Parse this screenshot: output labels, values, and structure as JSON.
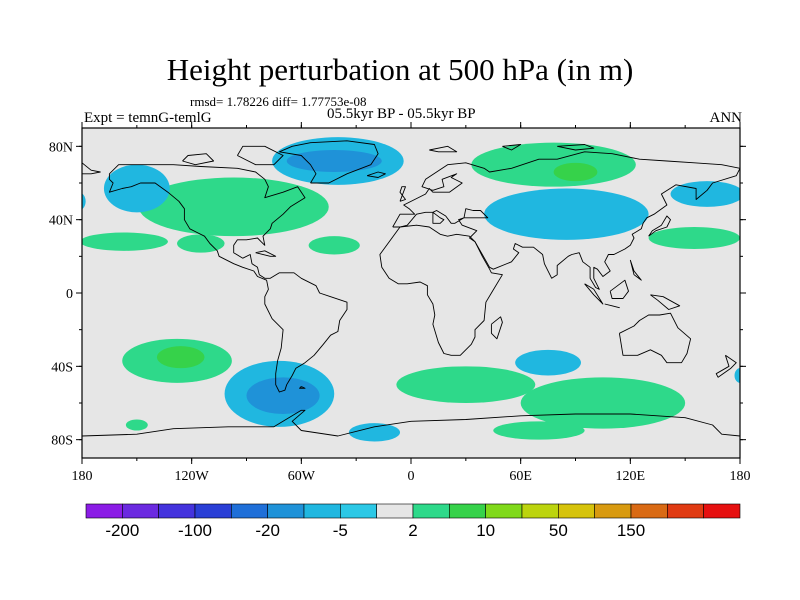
{
  "title": "Height perturbation at 500 hPa (in m)",
  "stats": "rmsd= 1.78226 diff= 1.77753e-08",
  "experiment": "Expt = temnG-temlG",
  "period": "05.5kyr BP - 05.5kyr BP",
  "season": "ANN",
  "lat_ticks": [
    {
      "label": "80N",
      "lat": 80
    },
    {
      "label": "40N",
      "lat": 40
    },
    {
      "label": "0",
      "lat": 0
    },
    {
      "label": "40S",
      "lat": -40
    },
    {
      "label": "80S",
      "lat": -80
    }
  ],
  "lon_ticks": [
    {
      "label": "180",
      "lon": -180
    },
    {
      "label": "120W",
      "lon": -120
    },
    {
      "label": "60W",
      "lon": -60
    },
    {
      "label": "0",
      "lon": 0
    },
    {
      "label": "60E",
      "lon": 60
    },
    {
      "label": "120E",
      "lon": 120
    },
    {
      "label": "180",
      "lon": 180
    }
  ],
  "colorbar": {
    "colors": [
      "#8b1ce6",
      "#6b2ae0",
      "#4433dd",
      "#2a3fd6",
      "#1f6fd8",
      "#1f92d8",
      "#20b7e0",
      "#2cc8e6",
      "#e6e6e6",
      "#2ed98a",
      "#36d24a",
      "#80d91a",
      "#bcd40e",
      "#d6c30c",
      "#d89a10",
      "#d96a14",
      "#e03a12",
      "#e61010"
    ],
    "labels": [
      "-200",
      "-100",
      "-20",
      "-5",
      "2",
      "10",
      "50",
      "150"
    ]
  },
  "anomaly_regions": [
    {
      "kind": "pos",
      "level": 1,
      "lon": -97,
      "lat": 47,
      "rlon": 52,
      "rlat": 16
    },
    {
      "kind": "pos",
      "level": 1,
      "lon": -157,
      "lat": 28,
      "rlon": 24,
      "rlat": 5
    },
    {
      "kind": "pos",
      "level": 1,
      "lon": -115,
      "lat": 27,
      "rlon": 13,
      "rlat": 5
    },
    {
      "kind": "pos",
      "level": 1,
      "lon": -42,
      "lat": 26,
      "rlon": 14,
      "rlat": 5
    },
    {
      "kind": "pos",
      "level": 1,
      "lon": 78,
      "lat": 70,
      "rlon": 45,
      "rlat": 12
    },
    {
      "kind": "pos",
      "level": 2,
      "lon": 90,
      "lat": 66,
      "rlon": 12,
      "rlat": 5
    },
    {
      "kind": "pos",
      "level": 1,
      "lon": 155,
      "lat": 30,
      "rlon": 25,
      "rlat": 6
    },
    {
      "kind": "pos",
      "level": 1,
      "lon": -128,
      "lat": -37,
      "rlon": 30,
      "rlat": 12
    },
    {
      "kind": "pos",
      "level": 2,
      "lon": -126,
      "lat": -35,
      "rlon": 13,
      "rlat": 6
    },
    {
      "kind": "pos",
      "level": 1,
      "lon": -150,
      "lat": -72,
      "rlon": 6,
      "rlat": 3
    },
    {
      "kind": "pos",
      "level": 1,
      "lon": 30,
      "lat": -50,
      "rlon": 38,
      "rlat": 10
    },
    {
      "kind": "pos",
      "level": 1,
      "lon": 105,
      "lat": -60,
      "rlon": 45,
      "rlat": 14
    },
    {
      "kind": "pos",
      "level": 1,
      "lon": 70,
      "lat": -75,
      "rlon": 25,
      "rlat": 5
    },
    {
      "kind": "neg",
      "level": 1,
      "lon": -40,
      "lat": 72,
      "rlon": 36,
      "rlat": 13
    },
    {
      "kind": "neg",
      "level": 2,
      "lon": -42,
      "lat": 72,
      "rlon": 26,
      "rlat": 6
    },
    {
      "kind": "neg",
      "level": 1,
      "lon": -150,
      "lat": 57,
      "rlon": 18,
      "rlat": 13
    },
    {
      "kind": "neg",
      "level": 1,
      "lon": 85,
      "lat": 43,
      "rlon": 45,
      "rlat": 14
    },
    {
      "kind": "neg",
      "level": 1,
      "lon": 162,
      "lat": 54,
      "rlon": 20,
      "rlat": 7
    },
    {
      "kind": "neg",
      "level": 1,
      "lon": -182,
      "lat": 50,
      "rlon": 4,
      "rlat": 5
    },
    {
      "kind": "neg",
      "level": 1,
      "lon": -72,
      "lat": -55,
      "rlon": 30,
      "rlat": 18
    },
    {
      "kind": "neg",
      "level": 2,
      "lon": -70,
      "lat": -56,
      "rlon": 20,
      "rlat": 10
    },
    {
      "kind": "neg",
      "level": 1,
      "lon": -20,
      "lat": -76,
      "rlon": 14,
      "rlat": 5
    },
    {
      "kind": "neg",
      "level": 1,
      "lon": 75,
      "lat": -38,
      "rlon": 18,
      "rlat": 7
    },
    {
      "kind": "neg",
      "level": 1,
      "lon": 180,
      "lat": -45,
      "rlon": 3,
      "rlat": 4
    }
  ],
  "coastlines": [
    [
      [
        -165,
        65
      ],
      [
        -160,
        70
      ],
      [
        -145,
        70
      ],
      [
        -130,
        70
      ],
      [
        -115,
        69
      ],
      [
        -95,
        68
      ],
      [
        -85,
        66
      ],
      [
        -80,
        62
      ],
      [
        -78,
        58
      ],
      [
        -80,
        52
      ],
      [
        -70,
        55
      ],
      [
        -62,
        58
      ],
      [
        -58,
        52
      ],
      [
        -66,
        47
      ],
      [
        -70,
        43
      ],
      [
        -76,
        38
      ],
      [
        -77,
        35
      ],
      [
        -81,
        31
      ],
      [
        -80,
        26
      ],
      [
        -82,
        28
      ],
      [
        -84,
        30
      ],
      [
        -90,
        29
      ],
      [
        -95,
        29
      ],
      [
        -97,
        26
      ],
      [
        -97,
        22
      ],
      [
        -92,
        19
      ],
      [
        -88,
        21
      ],
      [
        -87,
        16
      ],
      [
        -84,
        14
      ],
      [
        -83,
        10
      ],
      [
        -80,
        8
      ],
      [
        -77,
        8
      ],
      [
        -72,
        11
      ],
      [
        -64,
        11
      ],
      [
        -60,
        8
      ],
      [
        -52,
        4
      ],
      [
        -50,
        0
      ],
      [
        -44,
        -2
      ],
      [
        -35,
        -5
      ],
      [
        -35,
        -9
      ],
      [
        -39,
        -15
      ],
      [
        -40,
        -21
      ],
      [
        -44,
        -23
      ],
      [
        -48,
        -28
      ],
      [
        -53,
        -34
      ],
      [
        -58,
        -38
      ],
      [
        -63,
        -41
      ],
      [
        -65,
        -45
      ],
      [
        -68,
        -50
      ],
      [
        -69,
        -53
      ],
      [
        -72,
        -54
      ],
      [
        -74,
        -50
      ],
      [
        -74,
        -44
      ],
      [
        -73,
        -37
      ],
      [
        -71,
        -30
      ],
      [
        -70,
        -20
      ],
      [
        -76,
        -14
      ],
      [
        -80,
        -6
      ],
      [
        -80,
        -2
      ],
      [
        -78,
        2
      ],
      [
        -79,
        7
      ],
      [
        -84,
        9
      ],
      [
        -86,
        12
      ],
      [
        -92,
        14
      ],
      [
        -97,
        16
      ],
      [
        -105,
        20
      ],
      [
        -106,
        23
      ],
      [
        -110,
        27
      ],
      [
        -113,
        31
      ],
      [
        -117,
        33
      ],
      [
        -121,
        35
      ],
      [
        -124,
        40
      ],
      [
        -124,
        46
      ],
      [
        -127,
        50
      ],
      [
        -133,
        55
      ],
      [
        -140,
        60
      ],
      [
        -148,
        60
      ],
      [
        -153,
        58
      ],
      [
        -158,
        57
      ],
      [
        -165,
        55
      ],
      [
        -163,
        60
      ],
      [
        -165,
        62
      ],
      [
        -165,
        65
      ]
    ],
    [
      [
        -55,
        60
      ],
      [
        -45,
        60
      ],
      [
        -35,
        65
      ],
      [
        -22,
        70
      ],
      [
        -18,
        76
      ],
      [
        -20,
        81
      ],
      [
        -35,
        83
      ],
      [
        -55,
        82
      ],
      [
        -65,
        80
      ],
      [
        -72,
        77
      ],
      [
        -60,
        75
      ],
      [
        -55,
        70
      ],
      [
        -52,
        65
      ],
      [
        -55,
        60
      ]
    ],
    [
      [
        -125,
        72
      ],
      [
        -118,
        70
      ],
      [
        -108,
        72
      ],
      [
        -112,
        76
      ],
      [
        -122,
        75
      ],
      [
        -125,
        72
      ]
    ],
    [
      [
        -95,
        75
      ],
      [
        -85,
        70
      ],
      [
        -75,
        70
      ],
      [
        -70,
        75
      ],
      [
        -80,
        80
      ],
      [
        -92,
        80
      ],
      [
        -95,
        75
      ]
    ],
    [
      [
        -10,
        36
      ],
      [
        -6,
        43
      ],
      [
        2,
        43
      ],
      [
        -1,
        46
      ],
      [
        -4,
        48
      ],
      [
        2,
        51
      ],
      [
        8,
        54
      ],
      [
        10,
        57
      ],
      [
        12,
        55
      ],
      [
        21,
        55
      ],
      [
        28,
        60
      ],
      [
        22,
        63
      ],
      [
        25,
        65
      ],
      [
        17,
        62
      ],
      [
        18,
        58
      ],
      [
        12,
        56
      ],
      [
        6,
        58
      ],
      [
        8,
        62
      ],
      [
        14,
        66
      ],
      [
        20,
        70
      ],
      [
        30,
        71
      ],
      [
        40,
        68
      ],
      [
        43,
        66
      ],
      [
        55,
        68
      ],
      [
        70,
        73
      ],
      [
        80,
        73
      ],
      [
        95,
        77
      ],
      [
        110,
        76
      ],
      [
        125,
        73
      ],
      [
        140,
        72
      ],
      [
        155,
        71
      ],
      [
        170,
        70
      ],
      [
        180,
        68
      ],
      [
        178,
        64
      ],
      [
        165,
        60
      ],
      [
        162,
        56
      ],
      [
        156,
        51
      ],
      [
        156,
        57
      ],
      [
        145,
        59
      ],
      [
        137,
        54
      ],
      [
        140,
        48
      ],
      [
        133,
        43
      ],
      [
        129,
        41
      ],
      [
        127,
        38
      ],
      [
        126,
        35
      ],
      [
        121,
        32
      ],
      [
        122,
        30
      ],
      [
        120,
        26
      ],
      [
        117,
        24
      ],
      [
        111,
        21
      ],
      [
        108,
        21
      ],
      [
        106,
        17
      ],
      [
        109,
        12
      ],
      [
        105,
        9
      ],
      [
        102,
        13
      ],
      [
        100,
        14
      ],
      [
        100,
        8
      ],
      [
        103,
        2
      ],
      [
        101,
        3
      ],
      [
        98,
        8
      ],
      [
        98,
        14
      ],
      [
        94,
        17
      ],
      [
        92,
        22
      ],
      [
        88,
        21
      ],
      [
        86,
        20
      ],
      [
        80,
        15
      ],
      [
        80,
        10
      ],
      [
        77,
        8
      ],
      [
        73,
        16
      ],
      [
        72,
        21
      ],
      [
        67,
        25
      ],
      [
        61,
        25
      ],
      [
        57,
        27
      ],
      [
        56,
        24
      ],
      [
        59,
        22
      ],
      [
        55,
        17
      ],
      [
        45,
        13
      ],
      [
        43,
        14
      ],
      [
        39,
        21
      ],
      [
        35,
        28
      ],
      [
        32,
        30
      ],
      [
        36,
        34
      ],
      [
        28,
        37
      ],
      [
        26,
        40
      ],
      [
        29,
        41
      ],
      [
        37,
        41
      ],
      [
        42,
        41
      ],
      [
        38,
        45
      ],
      [
        34,
        45
      ],
      [
        30,
        46
      ],
      [
        29,
        41
      ],
      [
        24,
        38
      ],
      [
        22,
        38
      ],
      [
        19,
        42
      ],
      [
        14,
        45
      ],
      [
        12,
        44
      ],
      [
        16,
        41
      ],
      [
        18,
        40
      ],
      [
        16,
        38
      ],
      [
        12,
        38
      ],
      [
        12,
        44
      ],
      [
        8,
        44
      ],
      [
        3,
        43
      ],
      [
        -2,
        37
      ],
      [
        -6,
        36
      ],
      [
        -10,
        36
      ]
    ],
    [
      [
        -6,
        36
      ],
      [
        -17,
        21
      ],
      [
        -16,
        14
      ],
      [
        -12,
        8
      ],
      [
        -7,
        5
      ],
      [
        -2,
        5
      ],
      [
        5,
        6
      ],
      [
        9,
        4
      ],
      [
        9,
        -1
      ],
      [
        12,
        -6
      ],
      [
        13,
        -12
      ],
      [
        12,
        -17
      ],
      [
        15,
        -27
      ],
      [
        18,
        -33
      ],
      [
        22,
        -34
      ],
      [
        27,
        -34
      ],
      [
        33,
        -28
      ],
      [
        35,
        -24
      ],
      [
        35,
        -20
      ],
      [
        40,
        -15
      ],
      [
        41,
        -5
      ],
      [
        44,
        0
      ],
      [
        50,
        10
      ],
      [
        44,
        11
      ],
      [
        43,
        13
      ],
      [
        39,
        20
      ],
      [
        35,
        28
      ],
      [
        32,
        31
      ],
      [
        25,
        32
      ],
      [
        20,
        31
      ],
      [
        16,
        32
      ],
      [
        10,
        36
      ],
      [
        3,
        37
      ],
      [
        -6,
        36
      ]
    ],
    [
      [
        114,
        -22
      ],
      [
        116,
        -34
      ],
      [
        124,
        -34
      ],
      [
        131,
        -31
      ],
      [
        137,
        -34
      ],
      [
        140,
        -38
      ],
      [
        148,
        -38
      ],
      [
        151,
        -33
      ],
      [
        153,
        -25
      ],
      [
        146,
        -19
      ],
      [
        142,
        -11
      ],
      [
        136,
        -12
      ],
      [
        130,
        -12
      ],
      [
        125,
        -15
      ],
      [
        122,
        -18
      ],
      [
        114,
        -22
      ]
    ],
    [
      [
        172,
        -34
      ],
      [
        178,
        -38
      ],
      [
        175,
        -41
      ],
      [
        168,
        -46
      ],
      [
        167,
        -44
      ],
      [
        174,
        -40
      ],
      [
        172,
        -34
      ]
    ],
    [
      [
        95,
        5
      ],
      [
        100,
        2
      ],
      [
        105,
        -6
      ],
      [
        100,
        -1
      ],
      [
        95,
        5
      ]
    ],
    [
      [
        106,
        -6
      ],
      [
        114,
        -8
      ],
      [
        110,
        -7
      ],
      [
        106,
        -6
      ]
    ],
    [
      [
        109,
        1
      ],
      [
        117,
        7
      ],
      [
        119,
        1
      ],
      [
        116,
        -3
      ],
      [
        110,
        -3
      ],
      [
        109,
        1
      ]
    ],
    [
      [
        131,
        -1
      ],
      [
        138,
        -2
      ],
      [
        147,
        -7
      ],
      [
        141,
        -9
      ],
      [
        135,
        -4
      ],
      [
        131,
        -1
      ]
    ],
    [
      [
        130,
        31
      ],
      [
        134,
        34
      ],
      [
        140,
        36
      ],
      [
        142,
        40
      ],
      [
        140,
        42
      ],
      [
        137,
        37
      ],
      [
        132,
        34
      ],
      [
        130,
        31
      ]
    ],
    [
      [
        120,
        18
      ],
      [
        122,
        12
      ],
      [
        126,
        7
      ],
      [
        122,
        10
      ],
      [
        120,
        18
      ]
    ],
    [
      [
        44,
        -17
      ],
      [
        49,
        -13
      ],
      [
        50,
        -16
      ],
      [
        47,
        -25
      ],
      [
        44,
        -22
      ],
      [
        44,
        -17
      ]
    ],
    [
      [
        -6,
        50
      ],
      [
        -3,
        58
      ],
      [
        -5,
        58
      ],
      [
        -6,
        55
      ],
      [
        -3,
        51
      ],
      [
        -6,
        50
      ]
    ],
    [
      [
        -24,
        64
      ],
      [
        -18,
        66
      ],
      [
        -14,
        65
      ],
      [
        -18,
        63
      ],
      [
        -24,
        64
      ]
    ],
    [
      [
        -85,
        22
      ],
      [
        -77,
        20
      ],
      [
        -74,
        20
      ],
      [
        -80,
        23
      ],
      [
        -85,
        22
      ]
    ],
    [
      [
        -180,
        -78
      ],
      [
        -150,
        -77
      ],
      [
        -130,
        -74
      ],
      [
        -100,
        -73
      ],
      [
        -75,
        -73
      ],
      [
        -60,
        -64
      ],
      [
        -58,
        -64
      ],
      [
        -65,
        -70
      ],
      [
        -60,
        -75
      ],
      [
        -40,
        -78
      ],
      [
        -20,
        -73
      ],
      [
        0,
        -70
      ],
      [
        30,
        -69
      ],
      [
        60,
        -67
      ],
      [
        90,
        -66
      ],
      [
        120,
        -66
      ],
      [
        150,
        -68
      ],
      [
        165,
        -72
      ],
      [
        170,
        -77
      ],
      [
        180,
        -78
      ]
    ],
    [
      [
        -60,
        -51
      ],
      [
        -58,
        -52
      ],
      [
        -61,
        -52
      ],
      [
        -60,
        -51
      ]
    ],
    [
      [
        -180,
        71
      ],
      [
        -175,
        67
      ],
      [
        -170,
        66
      ],
      [
        -175,
        65
      ],
      [
        -180,
        65
      ]
    ],
    [
      [
        80,
        80
      ],
      [
        95,
        81
      ],
      [
        100,
        79
      ],
      [
        90,
        78
      ],
      [
        80,
        80
      ]
    ],
    [
      [
        50,
        80
      ],
      [
        60,
        81
      ],
      [
        55,
        78
      ],
      [
        50,
        80
      ]
    ],
    [
      [
        10,
        78
      ],
      [
        20,
        80
      ],
      [
        25,
        77
      ],
      [
        15,
        77
      ],
      [
        10,
        78
      ]
    ]
  ]
}
